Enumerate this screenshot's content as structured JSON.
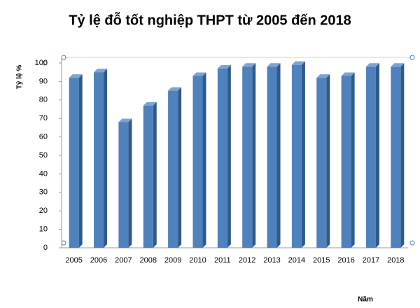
{
  "chart_data": {
    "type": "bar",
    "title": "Tỷ lệ đỗ tốt nghiệp THPT từ 2005 đến 2018",
    "y_label": "Tỷ lệ %",
    "x_label": "Năm",
    "categories": [
      "2005",
      "2006",
      "2007",
      "2008",
      "2009",
      "2010",
      "2011",
      "2012",
      "2013",
      "2014",
      "2015",
      "2016",
      "2017",
      "2018"
    ],
    "values": [
      92,
      95,
      68,
      77,
      85,
      93,
      97,
      98,
      98,
      99,
      92,
      93,
      98,
      98
    ],
    "color": "#4f81bd",
    "ylim": [
      0,
      100
    ],
    "yticks": [
      0,
      10,
      20,
      30,
      40,
      50,
      60,
      70,
      80,
      90,
      100
    ],
    "grid": false
  }
}
